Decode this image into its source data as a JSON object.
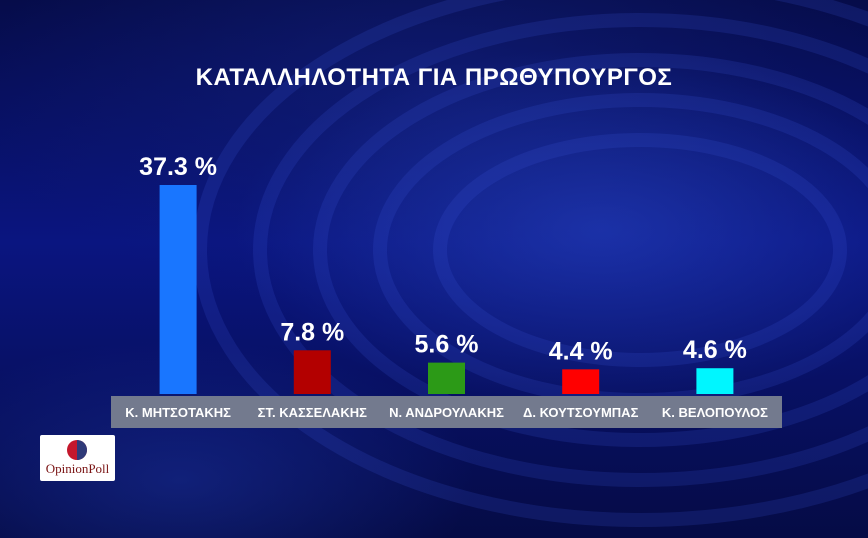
{
  "colors": {
    "bar_1": "#1976ff",
    "bar_2": "#b30000",
    "bar_3": "#2c9a17",
    "bar_4": "#ff0000",
    "bar_5": "#00f6ff",
    "label_strip": "#737a8e"
  },
  "logo": {
    "text": "OpinionPoll",
    "icon": "opinionpoll-logo-circle"
  },
  "chart_data": {
    "type": "bar",
    "title": "ΚΑΤΑΛΛΗΛΟΤΗΤΑ ΓΙΑ ΠΡΩΘΥΠΟΥΡΓΟΣ",
    "categories": [
      "Κ. ΜΗΤΣΟΤΑΚΗΣ",
      "ΣΤ. ΚΑΣΣΕΛΑΚΗΣ",
      "Ν. ΑΝΔΡΟΥΛΑΚΗΣ",
      "Δ. ΚΟΥΤΣΟΥΜΠΑΣ",
      "Κ. ΒΕΛΟΠΟΥΛΟΣ"
    ],
    "values": [
      37.3,
      7.8,
      5.6,
      4.4,
      4.6
    ],
    "value_labels": [
      "37.3 %",
      "7.8 %",
      "5.6 %",
      "4.4 %",
      "4.6 %"
    ],
    "bar_colors": [
      "#1976ff",
      "#b30000",
      "#2c9a17",
      "#ff0000",
      "#00f6ff"
    ],
    "xlabel": "",
    "ylabel": "",
    "ylim": [
      0,
      37.3
    ],
    "grid": false,
    "legend": "none"
  }
}
